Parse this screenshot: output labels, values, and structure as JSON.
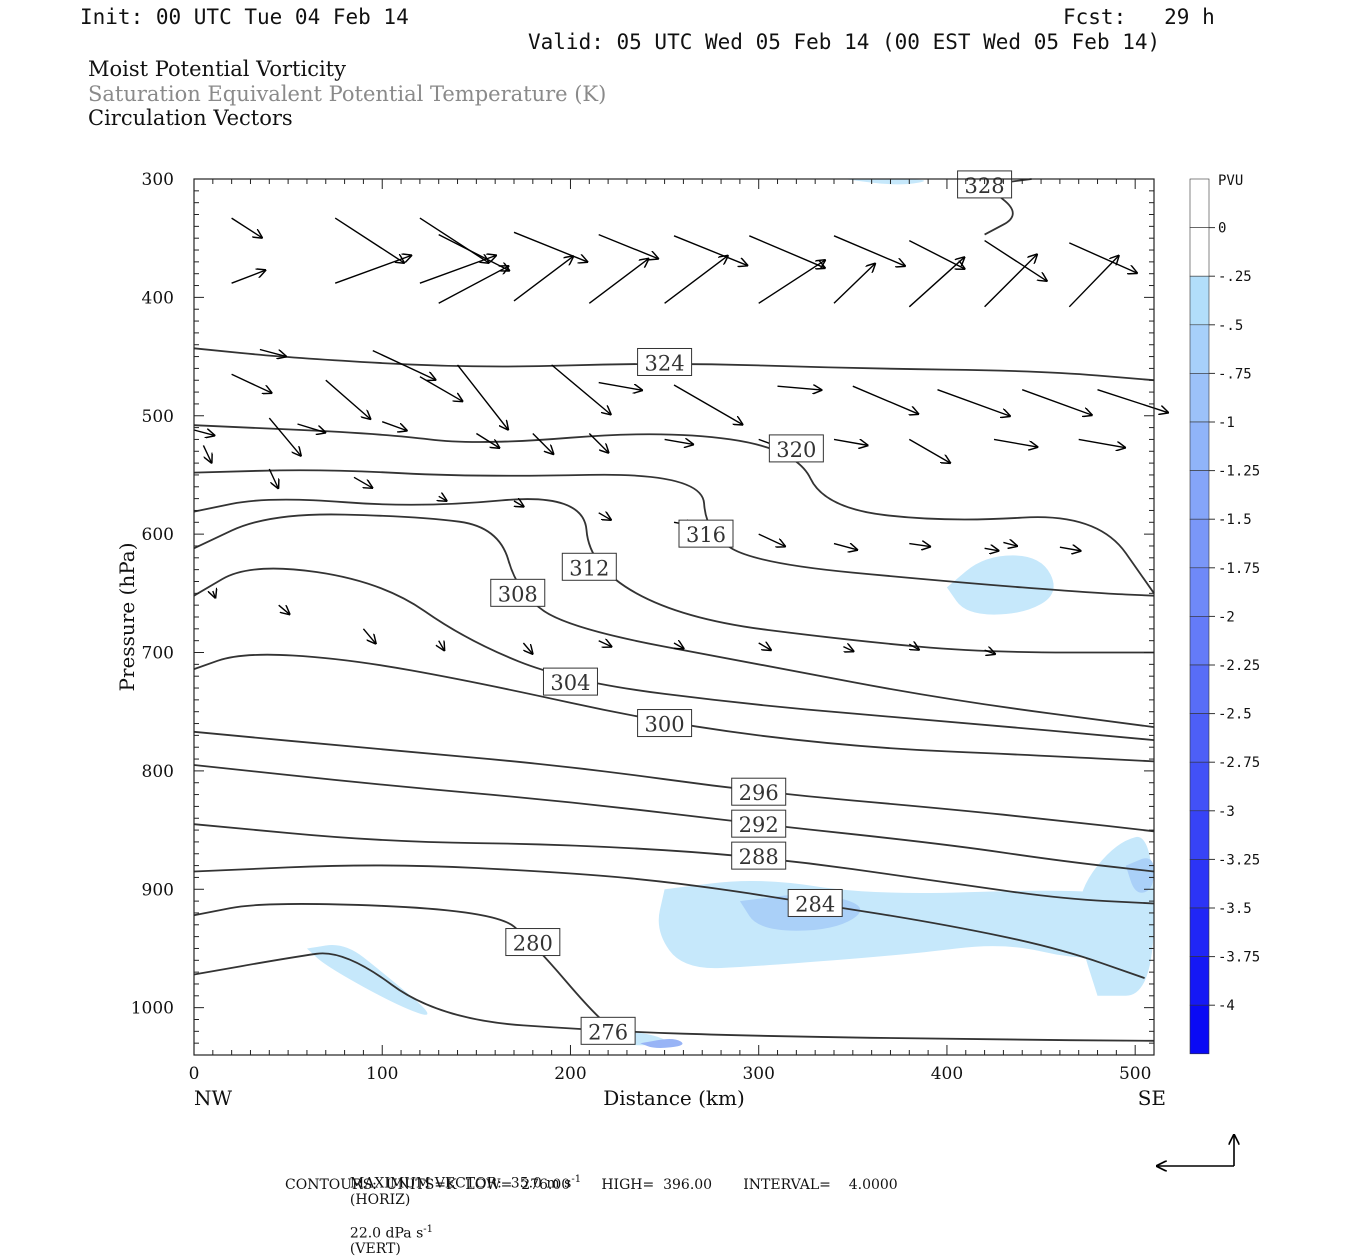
{
  "header": {
    "init": "Init: 00 UTC Tue 04 Feb 14",
    "fcst": "Fcst:   29 h",
    "valid": "Valid: 05 UTC Wed 05 Feb 14 (00 EST Wed 05 Feb 14)",
    "field1": "Moist Potential Vorticity",
    "field2": "Saturation Equivalent Potential Temperature (K)",
    "field3": "Circulation Vectors"
  },
  "colors": {
    "field2_text": "#8a8a8a",
    "contour": "#333333",
    "pv_fills": [
      "#c6e8fb",
      "#aad0f8",
      "#98b4f6",
      "#7f8cf3",
      "#5e5ef4"
    ]
  },
  "footer": {
    "max_vector_label": "MAXIMUM VECTOR:  35.0 m s",
    "max_vector_unit": "(HORIZ)",
    "vert_value": "22.0 dPa s",
    "vert_unit": "(VERT)",
    "exp": "-1",
    "contours": "CONTOURS:  UNITS=K  LOW=  276.00       HIGH=  396.00       INTERVAL=    4.0000"
  },
  "chart_data": {
    "type": "cross-section contour",
    "xlabel": "Distance (km)",
    "ylabel": "Pressure (hPa)",
    "xlim": [
      0,
      510
    ],
    "ylim": [
      1040,
      300
    ],
    "x_ticks": [
      0,
      100,
      200,
      300,
      400,
      500
    ],
    "y_ticks": [
      300,
      400,
      500,
      600,
      700,
      800,
      900,
      1000
    ],
    "x_end_labels": {
      "left": "NW",
      "right": "SE"
    },
    "colorbar": {
      "title": "PVU",
      "labels": [
        "0",
        "-.25",
        "-.5",
        "-.75",
        "-1",
        "-1.25",
        "-1.5",
        "-1.75",
        "-2",
        "-2.25",
        "-2.5",
        "-2.75",
        "-3",
        "-3.25",
        "-3.5",
        "-3.75",
        "-4"
      ]
    },
    "theta_e_contours": [
      {
        "value": 276,
        "label": "276",
        "pts": [
          [
            0,
            972
          ],
          [
            50,
            958
          ],
          [
            80,
            951
          ],
          [
            130,
            1010
          ],
          [
            220,
            1020
          ],
          [
            300,
            1024
          ],
          [
            420,
            1027
          ],
          [
            510,
            1028
          ]
        ]
      },
      {
        "value": 280,
        "label": "280",
        "pts": [
          [
            0,
            922
          ],
          [
            38,
            910
          ],
          [
            160,
            918
          ],
          [
            180,
            945
          ],
          [
            215,
            1010
          ],
          [
            228,
            1023
          ]
        ]
      },
      {
        "value": 284,
        "label": "284",
        "pts": [
          [
            0,
            885
          ],
          [
            100,
            878
          ],
          [
            200,
            886
          ],
          [
            260,
            895
          ],
          [
            330,
            912
          ],
          [
            400,
            930
          ],
          [
            460,
            950
          ],
          [
            505,
            975
          ]
        ]
      },
      {
        "value": 288,
        "label": "288",
        "pts": [
          [
            0,
            845
          ],
          [
            100,
            860
          ],
          [
            200,
            862
          ],
          [
            300,
            872
          ],
          [
            400,
            894
          ],
          [
            460,
            908
          ],
          [
            510,
            912
          ]
        ]
      },
      {
        "value": 292,
        "label": "292",
        "pts": [
          [
            0,
            795
          ],
          [
            100,
            812
          ],
          [
            200,
            826
          ],
          [
            300,
            845
          ],
          [
            400,
            862
          ],
          [
            460,
            876
          ],
          [
            510,
            885
          ]
        ]
      },
      {
        "value": 296,
        "label": "296",
        "pts": [
          [
            0,
            767
          ],
          [
            100,
            782
          ],
          [
            200,
            796
          ],
          [
            300,
            818
          ],
          [
            400,
            832
          ],
          [
            460,
            842
          ],
          [
            510,
            851
          ]
        ]
      },
      {
        "value": 300,
        "label": "300",
        "pts": [
          [
            0,
            714
          ],
          [
            25,
            700
          ],
          [
            80,
            705
          ],
          [
            150,
            725
          ],
          [
            250,
            760
          ],
          [
            350,
            780
          ],
          [
            450,
            787
          ],
          [
            510,
            792
          ]
        ]
      },
      {
        "value": 304,
        "label": "304",
        "pts": [
          [
            0,
            652
          ],
          [
            30,
            624
          ],
          [
            100,
            640
          ],
          [
            145,
            690
          ],
          [
            200,
            725
          ],
          [
            300,
            745
          ],
          [
            400,
            758
          ],
          [
            510,
            774
          ]
        ]
      },
      {
        "value": 308,
        "label": "308",
        "pts": [
          [
            0,
            612
          ],
          [
            40,
            582
          ],
          [
            120,
            585
          ],
          [
            162,
            594
          ],
          [
            172,
            650
          ],
          [
            200,
            680
          ],
          [
            300,
            710
          ],
          [
            400,
            740
          ],
          [
            510,
            763
          ]
        ]
      },
      {
        "value": 312,
        "label": "312",
        "pts": [
          [
            0,
            581
          ],
          [
            40,
            568
          ],
          [
            120,
            578
          ],
          [
            207,
            565
          ],
          [
            210,
            628
          ],
          [
            260,
            672
          ],
          [
            350,
            690
          ],
          [
            420,
            700
          ],
          [
            510,
            700
          ]
        ]
      },
      {
        "value": 316,
        "label": "316",
        "pts": [
          [
            0,
            548
          ],
          [
            70,
            545
          ],
          [
            150,
            552
          ],
          [
            270,
            548
          ],
          [
            272,
            600
          ],
          [
            300,
            625
          ],
          [
            400,
            640
          ],
          [
            480,
            650
          ],
          [
            510,
            652
          ]
        ]
      },
      {
        "value": 320,
        "label": "320",
        "pts": [
          [
            0,
            508
          ],
          [
            100,
            515
          ],
          [
            150,
            525
          ],
          [
            250,
            512
          ],
          [
            320,
            528
          ],
          [
            335,
            578
          ],
          [
            400,
            590
          ],
          [
            480,
            582
          ],
          [
            510,
            650
          ]
        ]
      },
      {
        "value": 324,
        "label": "324",
        "pts": [
          [
            0,
            443
          ],
          [
            50,
            451
          ],
          [
            150,
            460
          ],
          [
            250,
            455
          ],
          [
            350,
            460
          ],
          [
            450,
            462
          ],
          [
            510,
            470
          ]
        ]
      },
      {
        "value": 328,
        "label": "328",
        "pts": [
          [
            420,
            347
          ],
          [
            440,
            330
          ],
          [
            420,
            305
          ],
          [
            445,
            300
          ]
        ]
      }
    ],
    "pv_regions": [
      {
        "pvu": -0.25,
        "pts": [
          [
            250,
            900
          ],
          [
            300,
            890
          ],
          [
            360,
            905
          ],
          [
            460,
            900
          ],
          [
            500,
            905
          ],
          [
            510,
            920
          ],
          [
            510,
            955
          ],
          [
            470,
            960
          ],
          [
            430,
            945
          ],
          [
            380,
            955
          ],
          [
            300,
            965
          ],
          [
            260,
            968
          ],
          [
            245,
            935
          ]
        ]
      },
      {
        "pvu": -0.25,
        "pts": [
          [
            480,
            990
          ],
          [
            510,
            990
          ],
          [
            510,
            852
          ],
          [
            490,
            860
          ],
          [
            470,
            900
          ],
          [
            470,
            940
          ]
        ]
      },
      {
        "pvu": -0.25,
        "pts": [
          [
            60,
            950
          ],
          [
            80,
            945
          ],
          [
            100,
            970
          ],
          [
            130,
            1010
          ],
          [
            110,
            1000
          ],
          [
            70,
            965
          ]
        ]
      },
      {
        "pvu": -0.25,
        "pts": [
          [
            210,
            1028
          ],
          [
            230,
            1018
          ],
          [
            255,
            1028
          ],
          [
            240,
            1033
          ]
        ]
      },
      {
        "pvu": -0.25,
        "pts": [
          [
            400,
            645
          ],
          [
            420,
            618
          ],
          [
            450,
            618
          ],
          [
            460,
            650
          ],
          [
            440,
            668
          ],
          [
            410,
            668
          ]
        ]
      },
      {
        "pvu": -0.25,
        "pts": [
          [
            345,
            300
          ],
          [
            395,
            300
          ],
          [
            375,
            306
          ]
        ]
      },
      {
        "pvu": -0.5,
        "pts": [
          [
            290,
            910
          ],
          [
            330,
            902
          ],
          [
            360,
            915
          ],
          [
            340,
            935
          ],
          [
            300,
            935
          ]
        ]
      },
      {
        "pvu": -0.5,
        "pts": [
          [
            495,
            880
          ],
          [
            510,
            870
          ],
          [
            510,
            900
          ],
          [
            500,
            905
          ]
        ]
      },
      {
        "pvu": -0.75,
        "pts": [
          [
            237,
            1030
          ],
          [
            255,
            1025
          ],
          [
            262,
            1032
          ],
          [
            245,
            1035
          ]
        ]
      }
    ],
    "vectors": [
      [
        20,
        333,
        37,
        327
      ],
      [
        75,
        333,
        83,
        327
      ],
      [
        120,
        333,
        83,
        327
      ],
      [
        20,
        388,
        37,
        381
      ],
      [
        75,
        388,
        82,
        380
      ],
      [
        120,
        388,
        82,
        380
      ],
      [
        130,
        347,
        80,
        333
      ],
      [
        170,
        345,
        80,
        338
      ],
      [
        215,
        347,
        65,
        338
      ],
      [
        255,
        348,
        80,
        338
      ],
      [
        295,
        348,
        83,
        337
      ],
      [
        340,
        348,
        78,
        337
      ],
      [
        380,
        352,
        63,
        333
      ],
      [
        420,
        352,
        75,
        327
      ],
      [
        465,
        354,
        75,
        336
      ],
      [
        130,
        405,
        80,
        388
      ],
      [
        170,
        403,
        75,
        397
      ],
      [
        210,
        405,
        75,
        397
      ],
      [
        250,
        405,
        80,
        397
      ],
      [
        300,
        405,
        80,
        393
      ],
      [
        340,
        405,
        58,
        404
      ],
      [
        380,
        408,
        75,
        402
      ],
      [
        420,
        408,
        75,
        405
      ],
      [
        465,
        408,
        72,
        406
      ],
      [
        35,
        444,
        28,
        345
      ],
      [
        95,
        445,
        70,
        335
      ],
      [
        140,
        457,
        83,
        308
      ],
      [
        190,
        457,
        78,
        320
      ],
      [
        215,
        472,
        45,
        350
      ],
      [
        255,
        474,
        80,
        330
      ],
      [
        310,
        475,
        45,
        355
      ],
      [
        350,
        475,
        72,
        337
      ],
      [
        395,
        478,
        78,
        340
      ],
      [
        440,
        478,
        75,
        340
      ],
      [
        480,
        478,
        75,
        342
      ],
      [
        20,
        465,
        45,
        335
      ],
      [
        70,
        470,
        60,
        319
      ],
      [
        120,
        467,
        50,
        330
      ],
      [
        0,
        512,
        22,
        345
      ],
      [
        40,
        502,
        50,
        310
      ],
      [
        55,
        507,
        30,
        343
      ],
      [
        100,
        505,
        27,
        340
      ],
      [
        150,
        515,
        28,
        328
      ],
      [
        180,
        515,
        30,
        315
      ],
      [
        210,
        515,
        28,
        315
      ],
      [
        250,
        520,
        30,
        350
      ],
      [
        300,
        520,
        45,
        340
      ],
      [
        340,
        520,
        35,
        350
      ],
      [
        380,
        520,
        48,
        330
      ],
      [
        425,
        520,
        45,
        350
      ],
      [
        470,
        520,
        48,
        350
      ],
      [
        5,
        525,
        20,
        295
      ],
      [
        40,
        545,
        22,
        295
      ],
      [
        85,
        552,
        22,
        330
      ],
      [
        130,
        568,
        10,
        330
      ],
      [
        170,
        572,
        12,
        330
      ],
      [
        215,
        582,
        15,
        330
      ],
      [
        255,
        590,
        22,
        350
      ],
      [
        300,
        600,
        30,
        335
      ],
      [
        340,
        608,
        25,
        345
      ],
      [
        380,
        608,
        22,
        352
      ],
      [
        430,
        607,
        15,
        345
      ],
      [
        420,
        612,
        15,
        350
      ],
      [
        460,
        611,
        22,
        350
      ],
      [
        10,
        648,
        8,
        290
      ],
      [
        45,
        660,
        15,
        320
      ],
      [
        90,
        680,
        20,
        310
      ],
      [
        130,
        690,
        12,
        300
      ],
      [
        175,
        692,
        15,
        310
      ],
      [
        215,
        690,
        15,
        335
      ],
      [
        255,
        692,
        12,
        330
      ],
      [
        300,
        692,
        15,
        330
      ],
      [
        345,
        695,
        12,
        335
      ],
      [
        380,
        693,
        12,
        330
      ],
      [
        420,
        698,
        12,
        340
      ]
    ]
  }
}
